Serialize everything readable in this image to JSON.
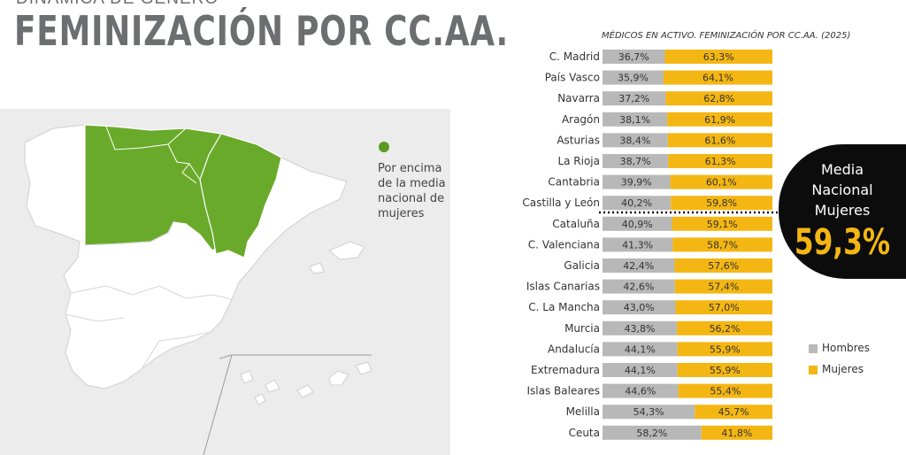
{
  "header": {
    "supertitle": "DINÁMICA DE GÉNERO",
    "title": "FEMINIZACIÓN POR CC.AA."
  },
  "map_legend": {
    "text": "Por encima de la media nacional de mujeres",
    "color": "#5a9b22"
  },
  "colors": {
    "hombres": "#b8b8b8",
    "mujeres": "#f4b612",
    "map_highlight": "#6aaa2a",
    "map_base": "#ffffff"
  },
  "badge": {
    "label": "Media\nNacional\nMujeres",
    "value": "59,3%"
  },
  "chart_data": {
    "type": "bar",
    "stacked": true,
    "orientation": "horizontal",
    "title": "MÉDICOS EN ACTIVO. FEMINIZACIÓN POR CC.AA. (2025)",
    "categories": [
      "C. Madrid",
      "País Vasco",
      "Navarra",
      "Aragón",
      "Asturias",
      "La Rioja",
      "Cantabria",
      "Castilla y León",
      "Cataluña",
      "C. Valenciana",
      "Galicia",
      "Islas Canarias",
      "C. La Mancha",
      "Murcia",
      "Andalucía",
      "Extremadura",
      "Islas Baleares",
      "Melilla",
      "Ceuta"
    ],
    "series": [
      {
        "name": "Hombres",
        "values": [
          36.7,
          35.9,
          37.2,
          38.1,
          38.4,
          38.7,
          39.9,
          40.2,
          40.9,
          41.3,
          42.4,
          42.6,
          43.0,
          43.8,
          44.1,
          44.1,
          44.6,
          54.3,
          58.2
        ],
        "labels": [
          "36,7%",
          "35,9%",
          "37,2%",
          "38,1%",
          "38,4%",
          "38,7%",
          "39,9%",
          "40,2%",
          "40,9%",
          "41,3%",
          "42,4%",
          "42,6%",
          "43,0%",
          "43,8%",
          "44,1%",
          "44,1%",
          "44,6%",
          "54,3%",
          "58,2%"
        ]
      },
      {
        "name": "Mujeres",
        "values": [
          63.3,
          64.1,
          62.8,
          61.9,
          61.6,
          61.3,
          60.1,
          59.8,
          59.1,
          58.7,
          57.6,
          57.4,
          57.0,
          56.2,
          55.9,
          55.9,
          55.4,
          45.7,
          41.8
        ],
        "labels": [
          "63,3%",
          "64,1%",
          "62,8%",
          "61,9%",
          "61,6%",
          "61,3%",
          "60,1%",
          "59,8%",
          "59,1%",
          "58,7%",
          "57,6%",
          "57,4%",
          "57,0%",
          "56,2%",
          "55,9%",
          "55,9%",
          "55,4%",
          "45,7%",
          "41,8%"
        ]
      }
    ],
    "xlim": [
      0,
      100
    ],
    "reference_line": {
      "after_category": "Castilla y León",
      "value": 59.3
    },
    "legend": [
      "Hombres",
      "Mujeres"
    ],
    "legend_position": "bottom-right"
  }
}
